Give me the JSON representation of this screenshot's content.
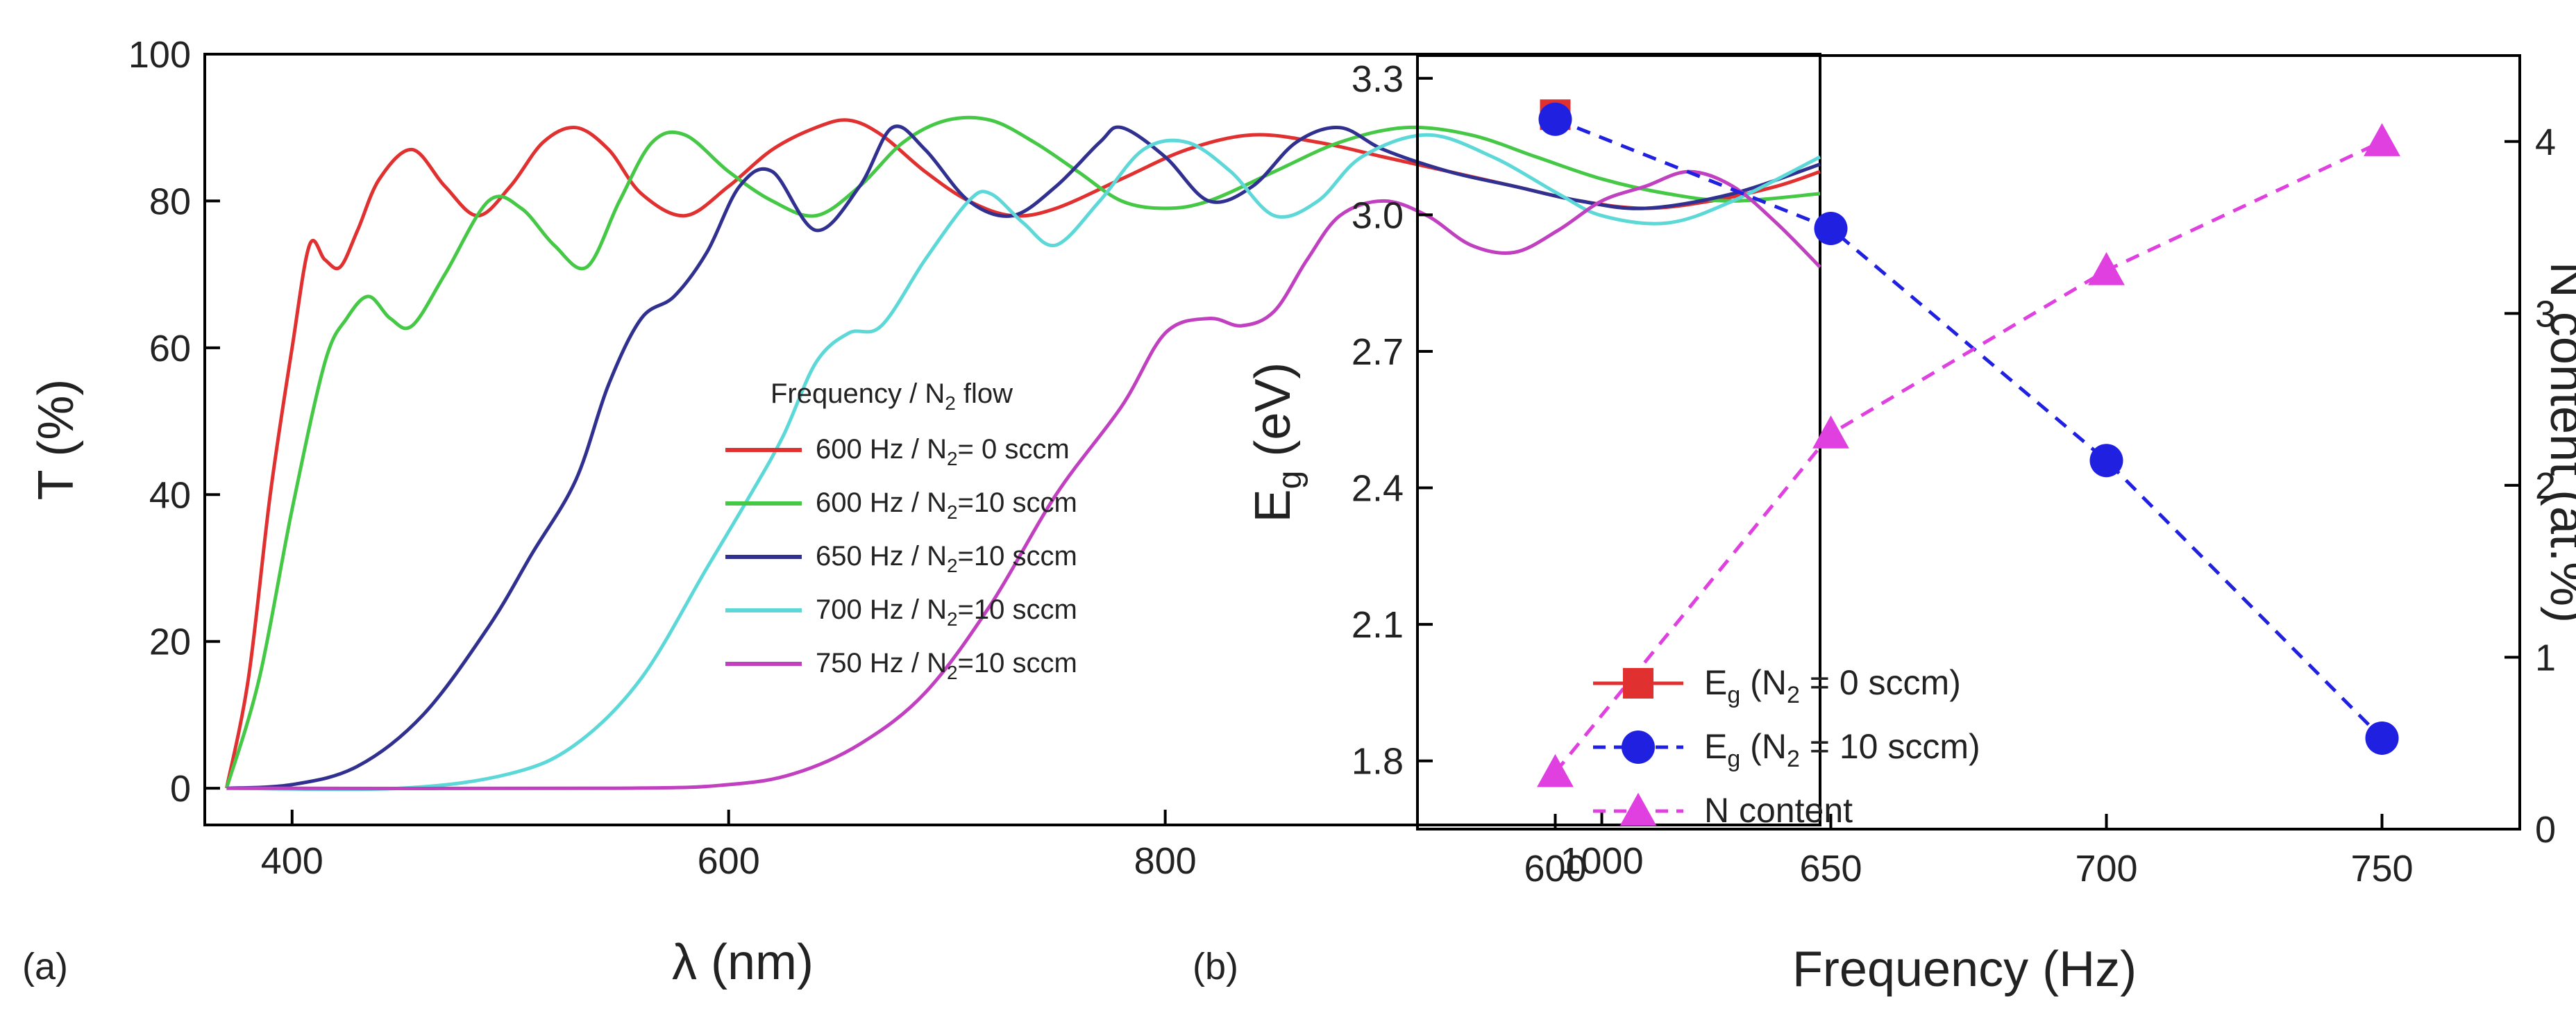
{
  "panel_a": {
    "label": "(a)",
    "legend_title": "Frequency / N",
    "legend_title_sub": "2",
    "legend_title_tail": " flow",
    "chart_data": {
      "type": "line",
      "xlabel": "λ (nm)",
      "ylabel": "T (%)",
      "xlim": [
        360,
        1100
      ],
      "ylim": [
        -5,
        100
      ],
      "xticks": [
        400,
        600,
        800,
        1000
      ],
      "yticks": [
        0,
        20,
        40,
        60,
        80,
        100
      ],
      "legend_position": "lower-right",
      "series": [
        {
          "name": "600 Hz / N2= 0 sccm",
          "label_pre": "600 Hz / N",
          "label_sub": "2",
          "label_post": "= 0 sccm",
          "color": "#e03030",
          "x": [
            370,
            380,
            390,
            400,
            408,
            415,
            422,
            430,
            440,
            455,
            470,
            485,
            500,
            515,
            530,
            545,
            560,
            580,
            600,
            620,
            640,
            655,
            670,
            690,
            710,
            730,
            750,
            780,
            810,
            840,
            870,
            900,
            930,
            960,
            990,
            1020,
            1050,
            1080,
            1100
          ],
          "y": [
            0,
            15,
            40,
            60,
            74,
            72,
            71,
            76,
            83,
            87,
            82,
            78,
            82,
            88,
            90,
            87,
            81,
            78,
            82,
            87,
            90,
            91,
            89,
            84,
            80,
            78,
            79,
            83,
            87,
            89,
            88,
            86,
            84,
            82,
            80,
            79,
            80,
            82,
            84
          ]
        },
        {
          "name": "600 Hz / N2=10 sccm",
          "label_pre": "600 Hz / N",
          "label_sub": "2",
          "label_post": "=10 sccm",
          "color": "#45c845",
          "x": [
            370,
            385,
            400,
            415,
            425,
            435,
            445,
            455,
            470,
            490,
            505,
            520,
            535,
            550,
            565,
            580,
            600,
            620,
            640,
            660,
            680,
            700,
            720,
            740,
            760,
            780,
            800,
            820,
            850,
            880,
            910,
            940,
            970,
            1000,
            1030,
            1060,
            1100
          ],
          "y": [
            0,
            15,
            38,
            58,
            64,
            67,
            64,
            63,
            70,
            80,
            79,
            74,
            71,
            80,
            88,
            89,
            84,
            80,
            78,
            82,
            88,
            91,
            91,
            88,
            84,
            80,
            79,
            80,
            84,
            88,
            90,
            89,
            86,
            83,
            81,
            80,
            81
          ]
        },
        {
          "name": "650 Hz / N2=10 sccm",
          "label_pre": "650 Hz / N",
          "label_sub": "2",
          "label_post": "=10 sccm",
          "color": "#303090",
          "x": [
            370,
            400,
            430,
            460,
            490,
            510,
            530,
            545,
            560,
            575,
            590,
            605,
            620,
            640,
            660,
            675,
            690,
            710,
            730,
            750,
            770,
            780,
            800,
            820,
            840,
            860,
            880,
            900,
            930,
            960,
            990,
            1020,
            1060,
            1100
          ],
          "y": [
            0,
            0.5,
            3,
            10,
            22,
            32,
            42,
            55,
            64,
            67,
            73,
            82,
            84,
            76,
            82,
            90,
            87,
            80,
            78,
            82,
            88,
            90,
            86,
            80,
            82,
            88,
            90,
            87,
            84,
            82,
            80,
            79,
            81,
            85
          ]
        },
        {
          "name": "700 Hz / N2=10 sccm",
          "label_pre": "700 Hz / N",
          "label_sub": "2",
          "label_post": "=10 sccm",
          "color": "#5cd8d8",
          "x": [
            370,
            450,
            500,
            530,
            560,
            590,
            610,
            625,
            640,
            655,
            670,
            690,
            710,
            720,
            735,
            750,
            770,
            790,
            810,
            830,
            850,
            870,
            890,
            920,
            950,
            980,
            1000,
            1030,
            1060,
            1100
          ],
          "y": [
            0,
            0,
            2,
            6,
            15,
            30,
            40,
            48,
            58,
            62,
            63,
            72,
            80,
            81,
            77,
            74,
            80,
            87,
            88,
            84,
            78,
            80,
            86,
            89,
            86,
            81,
            78,
            77,
            80,
            86
          ]
        },
        {
          "name": "750 Hz / N2=10 sccm",
          "label_pre": "750 Hz / N",
          "label_sub": "2",
          "label_post": "=10 sccm",
          "color": "#c040c0",
          "x": [
            370,
            550,
            600,
            630,
            660,
            690,
            720,
            750,
            780,
            800,
            820,
            835,
            850,
            865,
            880,
            900,
            920,
            940,
            960,
            980,
            1000,
            1020,
            1040,
            1060,
            1080,
            1100
          ],
          "y": [
            0,
            0,
            0.5,
            2,
            6,
            13,
            25,
            40,
            52,
            62,
            64,
            63,
            65,
            72,
            78,
            80,
            78,
            74,
            73,
            76,
            80,
            82,
            84,
            82,
            77,
            71
          ]
        }
      ]
    }
  },
  "panel_b": {
    "label": "(b)",
    "chart_data": {
      "type": "line",
      "xlabel": "Frequency (Hz)",
      "ylabel": "E",
      "ylabel_sub": "g",
      "ylabel_tail": " (eV)",
      "y2label": "N content (at.%)",
      "xlim": [
        575,
        775
      ],
      "ylim": [
        1.65,
        3.35
      ],
      "y2lim": [
        0,
        4.5
      ],
      "xticks": [
        600,
        650,
        700,
        750
      ],
      "yticks": [
        "1.8",
        "2.1",
        "2.4",
        "2.7",
        "3.0",
        "3.3"
      ],
      "y2ticks": [
        0,
        1,
        2,
        3,
        4
      ],
      "legend_position": "lower-left",
      "series": [
        {
          "name": "Eg (N2 = 0 sccm)",
          "label_pre": "E",
          "label_sub1": "g",
          "label_mid": " (N",
          "label_sub2": "2",
          "label_post": " =  0 sccm)",
          "color": "#e03030",
          "marker": "square",
          "linestyle": "solid",
          "axis": "left",
          "x": [
            600
          ],
          "y": [
            3.22
          ]
        },
        {
          "name": "Eg (N2 = 10 sccm)",
          "label_pre": "E",
          "label_sub1": "g",
          "label_mid": " (N",
          "label_sub2": "2",
          "label_post": " = 10 sccm)",
          "color": "#2020e0",
          "marker": "circle",
          "linestyle": "dashed",
          "axis": "left",
          "x": [
            600,
            650,
            700,
            750
          ],
          "y": [
            3.21,
            2.97,
            2.46,
            1.85
          ]
        },
        {
          "name": "N content",
          "label_pre": "N content",
          "color": "#e040e0",
          "marker": "triangle",
          "linestyle": "dashed",
          "axis": "right",
          "x": [
            600,
            650,
            700,
            750
          ],
          "y": [
            0.33,
            2.3,
            3.25,
            4.0
          ]
        }
      ]
    }
  }
}
